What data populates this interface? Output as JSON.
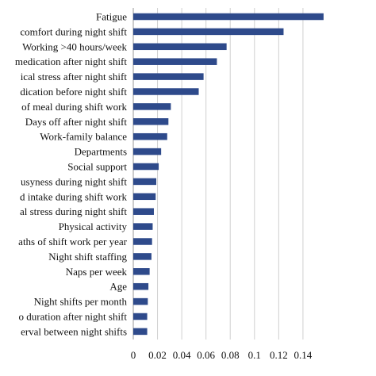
{
  "chart_data": {
    "type": "bar",
    "orientation": "horizontal",
    "title": "",
    "xlabel": "",
    "ylabel": "",
    "categories": [
      "Fatigue",
      "comfort during night shift",
      "Working >40 hours/week",
      "medication after night shift",
      "ical stress after night shift",
      "dication before night shift",
      "of meal during shift work",
      "Days off after night shift",
      "Work-family balance",
      "Departments",
      "Social support",
      "usyness during night shift",
      "d intake during shift work",
      "al stress during night shift",
      "Physical activity",
      "aths of shift work per year",
      "Night shift staffing",
      "Naps per week",
      "Age",
      "Night shifts per month",
      "o duration after night shift",
      "erval between night shifts"
    ],
    "values": [
      0.157,
      0.124,
      0.077,
      0.069,
      0.058,
      0.054,
      0.031,
      0.029,
      0.028,
      0.023,
      0.021,
      0.019,
      0.0185,
      0.017,
      0.016,
      0.0155,
      0.015,
      0.0135,
      0.0125,
      0.012,
      0.0115,
      0.0115
    ],
    "xlim": [
      0,
      0.15
    ],
    "xticks": [
      "0",
      "0.02",
      "0.04",
      "0.06",
      "0.08",
      "0.1",
      "0.12",
      "0.14"
    ],
    "tick_values": [
      0,
      0.02,
      0.04,
      0.06,
      0.08,
      0.1,
      0.12,
      0.14
    ],
    "grid": "vertical",
    "bar_color": "#2E4A8B",
    "grid_color": "#D0D0D0"
  }
}
